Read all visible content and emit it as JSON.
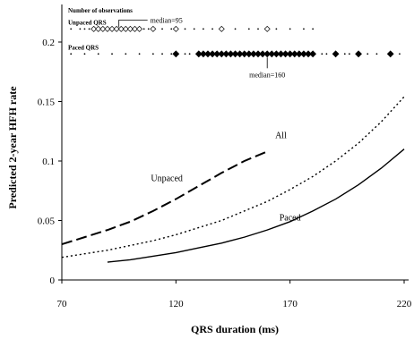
{
  "chart_data": {
    "type": "line",
    "xlabel": "QRS duration (ms)",
    "ylabel": "Predicted 2-year HFH rate",
    "xlim": [
      70,
      220
    ],
    "ylim": [
      0,
      0.22
    ],
    "x_ticks": [
      "70",
      "120",
      "170",
      "220"
    ],
    "y_ticks": [
      "0",
      "0.05",
      "0.1",
      "0.15",
      "0.2"
    ],
    "grid": false,
    "legend": "none",
    "series": [
      {
        "name": "Unpaced",
        "style": "long-dash",
        "x": [
          70,
          80,
          90,
          100,
          110,
          120,
          130,
          140,
          150,
          160
        ],
        "y": [
          0.03,
          0.036,
          0.042,
          0.049,
          0.058,
          0.068,
          0.079,
          0.09,
          0.1,
          0.108
        ]
      },
      {
        "name": "All",
        "style": "dotted",
        "x": [
          70,
          80,
          90,
          100,
          110,
          120,
          130,
          140,
          150,
          160,
          170,
          180,
          190,
          200,
          210,
          220
        ],
        "y": [
          0.019,
          0.022,
          0.025,
          0.029,
          0.033,
          0.038,
          0.044,
          0.05,
          0.058,
          0.066,
          0.076,
          0.087,
          0.1,
          0.115,
          0.133,
          0.154
        ]
      },
      {
        "name": "Paced",
        "style": "solid",
        "x": [
          90,
          100,
          110,
          120,
          130,
          140,
          150,
          160,
          170,
          180,
          190,
          200,
          210,
          220
        ],
        "y": [
          0.015,
          0.017,
          0.02,
          0.023,
          0.027,
          0.031,
          0.036,
          0.042,
          0.049,
          0.058,
          0.068,
          0.08,
          0.094,
          0.11
        ]
      }
    ],
    "rug": {
      "title": "Number of observations",
      "rows": [
        {
          "name": "Unpaced QRS",
          "y": 0.211,
          "marker": "open-diamond",
          "median_label": "median=95",
          "median_x": 95,
          "large_x": [
            84,
            86,
            88,
            90,
            92,
            94,
            96,
            98,
            100,
            102,
            104,
            110,
            120,
            140,
            160
          ],
          "small_x": [
            74,
            78,
            80,
            82,
            106,
            108,
            114,
            118,
            124,
            128,
            132,
            136,
            146,
            152,
            156,
            164,
            170,
            176,
            180
          ]
        },
        {
          "name": "Paced QRS",
          "y": 0.19,
          "marker": "filled-diamond",
          "median_label": "median=160",
          "median_x": 160,
          "large_x": [
            120,
            130,
            132,
            134,
            136,
            138,
            140,
            142,
            144,
            146,
            148,
            150,
            152,
            154,
            156,
            158,
            160,
            162,
            164,
            166,
            168,
            170,
            172,
            174,
            176,
            178,
            180,
            190,
            200,
            214
          ],
          "small_x": [
            74,
            80,
            86,
            92,
            98,
            104,
            110,
            114,
            118,
            124,
            126,
            184,
            186,
            194,
            196,
            204,
            208,
            218
          ]
        }
      ]
    },
    "curve_labels": [
      {
        "text": "Unpaced",
        "x": 116,
        "y": 0.083
      },
      {
        "text": "All",
        "x": 166,
        "y": 0.119
      },
      {
        "text": "Paced",
        "x": 170,
        "y": 0.05
      }
    ]
  }
}
